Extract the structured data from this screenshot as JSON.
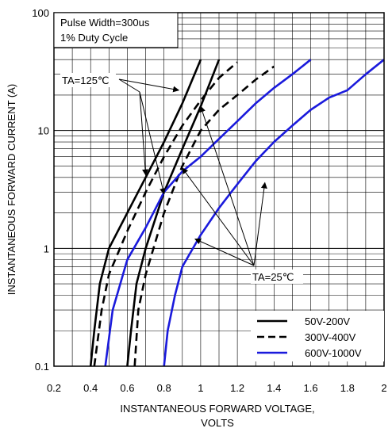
{
  "chart_data": {
    "type": "line",
    "xlabel_line1": "INSTANTANEOUS FORWARD VOLTAGE,",
    "xlabel_line2": "VOLTS",
    "ylabel": "INSTANTANEOUS FORWARD CURRENT (A)",
    "xlim": [
      0.2,
      2.0
    ],
    "ylim": [
      0.1,
      100
    ],
    "yscale": "log",
    "grid": true,
    "x_ticks": [
      0.2,
      0.4,
      0.6,
      0.8,
      1.0,
      1.2,
      1.4,
      1.6,
      1.8,
      2.0
    ],
    "x_tick_labels": [
      "0.2",
      "0.4",
      "0.6",
      "0.8",
      "1",
      "1.2",
      "1.4",
      "1.6",
      "1.8",
      "2"
    ],
    "y_ticks": [
      0.1,
      1,
      10,
      100
    ],
    "y_tick_labels": [
      "0.1",
      "1",
      "10",
      "100"
    ],
    "annotation_box": [
      "Pulse Width=300us",
      "1% Duty Cycle"
    ],
    "annotation_ta125": "TA=125℃",
    "annotation_ta25": "TA=25℃",
    "legend_position": "bottom-right",
    "legend": [
      {
        "label": "50V-200V",
        "style": "solid",
        "color": "#000000"
      },
      {
        "label": "300V-400V",
        "style": "dashed",
        "color": "#000000"
      },
      {
        "label": "600V-1000V",
        "style": "solid",
        "color": "#1a1adc"
      }
    ],
    "series": [
      {
        "group": "50V-200V",
        "condition": "125C",
        "style": "solid",
        "color": "#000000",
        "points": [
          [
            0.4,
            0.1
          ],
          [
            0.42,
            0.2
          ],
          [
            0.45,
            0.5
          ],
          [
            0.5,
            1.0
          ],
          [
            0.6,
            2.0
          ],
          [
            0.7,
            4.0
          ],
          [
            0.8,
            8.0
          ],
          [
            0.9,
            17.0
          ],
          [
            1.0,
            40.0
          ]
        ]
      },
      {
        "group": "50V-200V",
        "condition": "25C",
        "style": "solid",
        "color": "#000000",
        "points": [
          [
            0.6,
            0.1
          ],
          [
            0.62,
            0.2
          ],
          [
            0.65,
            0.5
          ],
          [
            0.7,
            1.0
          ],
          [
            0.8,
            3.0
          ],
          [
            0.9,
            7.0
          ],
          [
            1.0,
            16.0
          ],
          [
            1.1,
            40.0
          ]
        ]
      },
      {
        "group": "300V-400V",
        "condition": "125C",
        "style": "dashed",
        "color": "#000000",
        "points": [
          [
            0.42,
            0.1
          ],
          [
            0.46,
            0.3
          ],
          [
            0.5,
            0.6
          ],
          [
            0.6,
            1.4
          ],
          [
            0.7,
            3.0
          ],
          [
            0.8,
            6.0
          ],
          [
            0.9,
            11.0
          ],
          [
            1.0,
            18.0
          ],
          [
            1.1,
            28.0
          ],
          [
            1.2,
            38.0
          ]
        ]
      },
      {
        "group": "300V-400V",
        "condition": "25C",
        "style": "dashed",
        "color": "#000000",
        "points": [
          [
            0.64,
            0.1
          ],
          [
            0.66,
            0.3
          ],
          [
            0.7,
            0.6
          ],
          [
            0.8,
            2.0
          ],
          [
            0.9,
            5.0
          ],
          [
            1.0,
            10.0
          ],
          [
            1.1,
            15.0
          ],
          [
            1.2,
            20.0
          ],
          [
            1.3,
            27.0
          ],
          [
            1.4,
            35.0
          ]
        ]
      },
      {
        "group": "600V-1000V",
        "condition": "125C",
        "style": "solid",
        "color": "#1a1adc",
        "points": [
          [
            0.48,
            0.1
          ],
          [
            0.52,
            0.3
          ],
          [
            0.6,
            0.8
          ],
          [
            0.7,
            1.5
          ],
          [
            0.8,
            3.0
          ],
          [
            0.9,
            4.5
          ],
          [
            1.0,
            6.0
          ],
          [
            1.1,
            8.5
          ],
          [
            1.2,
            12.0
          ],
          [
            1.3,
            17.0
          ],
          [
            1.4,
            23.0
          ],
          [
            1.5,
            30.0
          ],
          [
            1.6,
            40.0
          ]
        ]
      },
      {
        "group": "600V-1000V",
        "condition": "25C",
        "style": "solid",
        "color": "#1a1adc",
        "points": [
          [
            0.8,
            0.1
          ],
          [
            0.82,
            0.2
          ],
          [
            0.86,
            0.4
          ],
          [
            0.9,
            0.7
          ],
          [
            1.0,
            1.3
          ],
          [
            1.1,
            2.2
          ],
          [
            1.2,
            3.5
          ],
          [
            1.3,
            5.5
          ],
          [
            1.4,
            8.0
          ],
          [
            1.5,
            11.0
          ],
          [
            1.6,
            15.0
          ],
          [
            1.7,
            19.0
          ],
          [
            1.8,
            22.0
          ],
          [
            1.9,
            30.0
          ],
          [
            2.0,
            40.0
          ]
        ]
      }
    ]
  }
}
